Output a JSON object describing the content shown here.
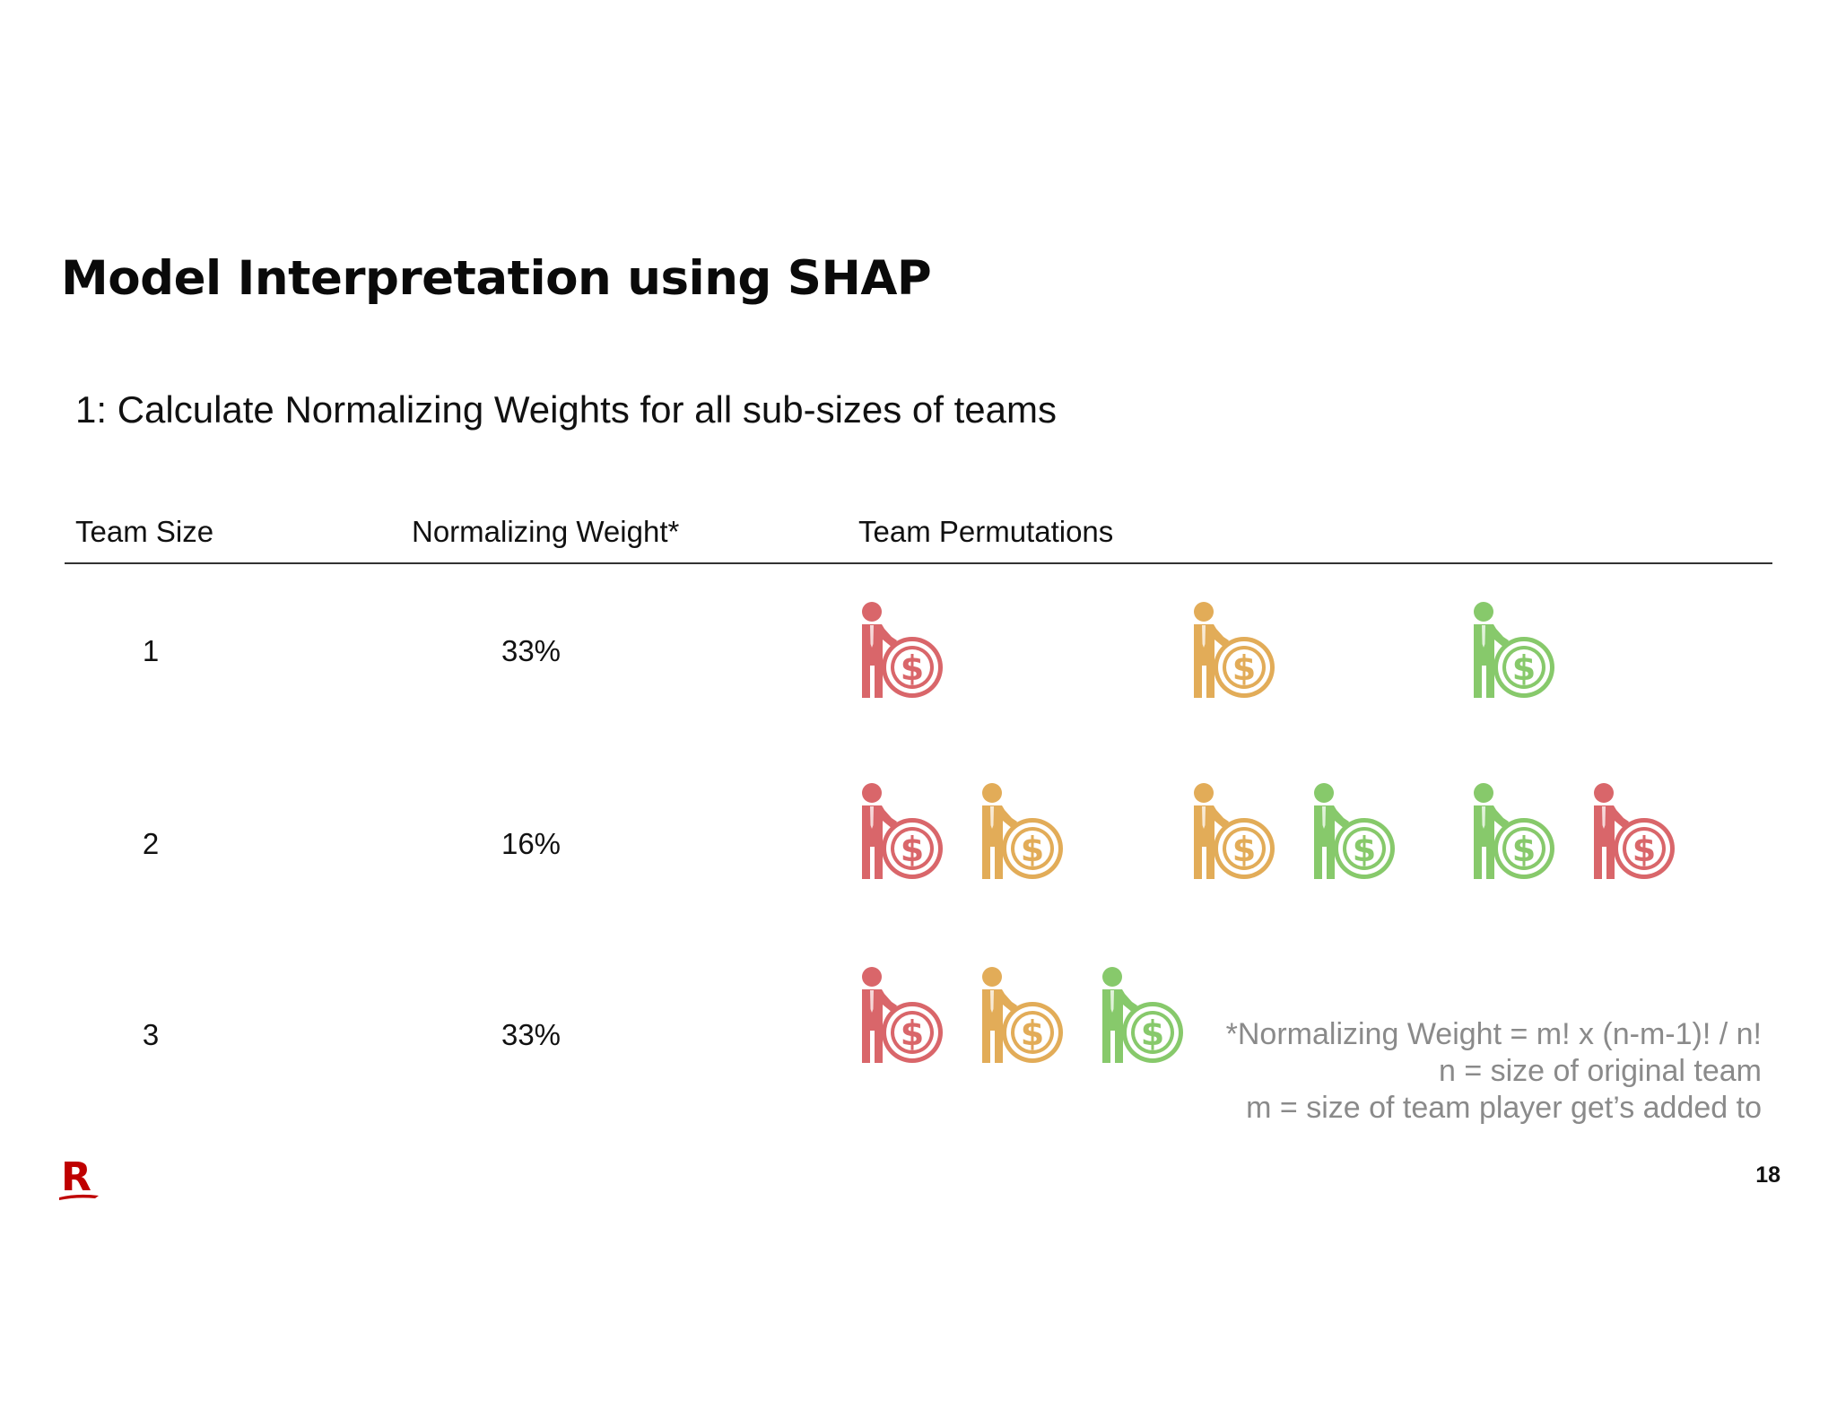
{
  "slide": {
    "title": "Model Interpretation using SHAP",
    "subtitle": "1: Calculate Normalizing Weights for all sub-sizes of teams",
    "page_number": "18"
  },
  "table": {
    "headers": [
      "Team Size",
      "Normalizing Weight*",
      "Team Permutations"
    ],
    "rows": [
      {
        "team_size": "1",
        "weight": "33%",
        "permutations": [
          [
            "red"
          ],
          [
            "orange"
          ],
          [
            "green"
          ]
        ]
      },
      {
        "team_size": "2",
        "weight": "16%",
        "permutations": [
          [
            "red",
            "orange"
          ],
          [
            "orange",
            "green"
          ],
          [
            "green",
            "red"
          ]
        ]
      },
      {
        "team_size": "3",
        "weight": "33%",
        "permutations": [
          [
            "red",
            "orange",
            "green"
          ]
        ]
      }
    ]
  },
  "footnote": {
    "line1": "*Normalizing Weight =  m! x (n-m-1)! / n!",
    "line2": "n = size of original team",
    "line3": "m = size of team player get’s added to"
  },
  "icons": {
    "player": "businessman-with-dollar-coin-icon",
    "logo": "brand-r-logo"
  },
  "colors": {
    "red": "#d9666a",
    "orange": "#e2ac58",
    "green": "#87c96b",
    "logo_red": "#bf0000",
    "footnote_gray": "#8a8a8a"
  }
}
